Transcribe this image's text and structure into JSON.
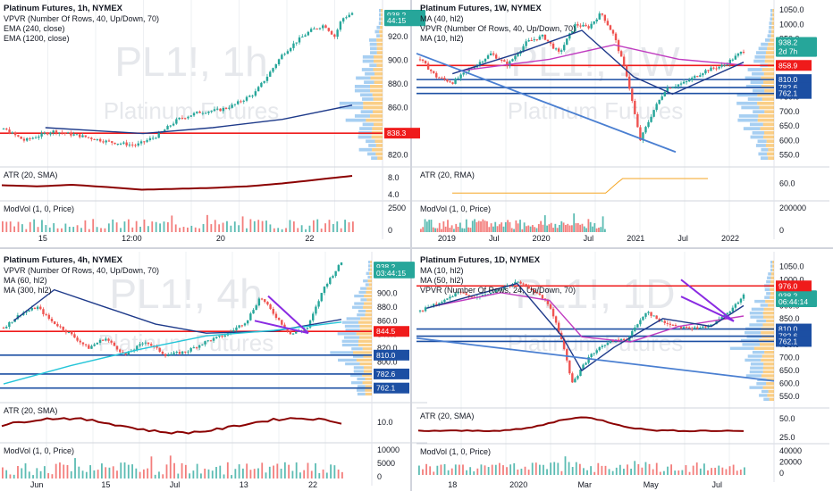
{
  "colors": {
    "up": "#26a69a",
    "down": "#ef5350",
    "red_line": "#ef1b1b",
    "blue_line": "#1c4fa3",
    "trend": "#4a7fd1",
    "purple": "#8a2be2",
    "vol_orange": "#f5a623",
    "vol_blue": "#5fa8e8",
    "atr": "#8b0000",
    "ma_blue": "#1e3a8a",
    "ma_pink": "#c03cc0",
    "ma_cyan": "#24c5d8",
    "grid": "#eef0f3",
    "watermark": "#e6e8ec"
  },
  "chart_data": [
    {
      "id": "chart-1h",
      "type": "candlestick",
      "title": "Platinum Futures, 1h, NYMEX",
      "indicators": [
        "VPVR (Number Of Rows, 40, Up/Down, 70)",
        "EMA (240, close)",
        "EMA (1200, close)"
      ],
      "watermark_symbol": "PL1!, 1h",
      "watermark_name": "Platinum Futures",
      "ylim": [
        815,
        945
      ],
      "y_ticks": [
        "940.0",
        "920.0",
        "900.0",
        "880.0",
        "860.0",
        "840.0",
        "820.0"
      ],
      "x_ticks": [
        "15",
        "12:00",
        "20",
        "22"
      ],
      "price_path": [
        [
          0,
          842
        ],
        [
          0.06,
          832
        ],
        [
          0.14,
          840
        ],
        [
          0.22,
          836
        ],
        [
          0.3,
          831
        ],
        [
          0.38,
          828
        ],
        [
          0.44,
          836
        ],
        [
          0.5,
          850
        ],
        [
          0.56,
          856
        ],
        [
          0.62,
          858
        ],
        [
          0.66,
          862
        ],
        [
          0.72,
          872
        ],
        [
          0.76,
          888
        ],
        [
          0.8,
          905
        ],
        [
          0.84,
          916
        ],
        [
          0.88,
          925
        ],
        [
          0.92,
          930
        ],
        [
          0.95,
          920
        ],
        [
          0.97,
          935
        ],
        [
          1,
          940
        ]
      ],
      "ema": [
        {
          "name": "EMA (240, close)",
          "points": [
            [
              0.12,
              843
            ],
            [
              0.4,
              838
            ],
            [
              0.6,
              843
            ],
            [
              0.8,
              850
            ],
            [
              1,
              862
            ]
          ]
        }
      ],
      "hlines": [
        {
          "price": 838.3,
          "label": "838.3"
        }
      ],
      "price_tags": [
        {
          "price": 938.2,
          "label": "938.2"
        },
        {
          "price": 933.5,
          "label": "44:15"
        }
      ],
      "atr": {
        "label": "ATR (20, SMA)",
        "ylim": [
          1,
          10
        ],
        "y_ticks": [
          "8.0",
          "4.0"
        ],
        "points": [
          [
            0,
            5
          ],
          [
            0.1,
            4.5
          ],
          [
            0.2,
            5.2
          ],
          [
            0.3,
            4.2
          ],
          [
            0.4,
            3
          ],
          [
            0.5,
            3.4
          ],
          [
            0.6,
            3.8
          ],
          [
            0.7,
            4.5
          ],
          [
            0.8,
            5.8
          ],
          [
            0.9,
            7.5
          ],
          [
            1,
            9.2
          ]
        ]
      },
      "modvol": {
        "label": "ModVol (1, 0, Price)",
        "y_ticks": [
          "2500",
          "0"
        ]
      }
    },
    {
      "id": "chart-1w",
      "type": "candlestick",
      "title": "Platinum Futures, 1W, NYMEX",
      "indicators": [
        "MA (40, hl2)",
        "VPVR (Number Of Rows, 40, Up/Down, 70)",
        "MA (10, hl2)"
      ],
      "watermark_symbol": "PL1!, 1W",
      "watermark_name": "Platinum Futures",
      "ylim": [
        530,
        1060
      ],
      "y_ticks": [
        "1050.0",
        "1000.0",
        "950.0",
        "900.0",
        "850.0",
        "800.0",
        "750.0",
        "700.0",
        "650.0",
        "600.0",
        "550.0"
      ],
      "x_ticks": [
        "2019",
        "Jul",
        "2020",
        "Jul",
        "2021",
        "Jul",
        "2022"
      ],
      "price_path": [
        [
          0,
          880
        ],
        [
          0.05,
          820
        ],
        [
          0.1,
          800
        ],
        [
          0.16,
          850
        ],
        [
          0.22,
          900
        ],
        [
          0.27,
          860
        ],
        [
          0.33,
          940
        ],
        [
          0.38,
          960
        ],
        [
          0.43,
          900
        ],
        [
          0.48,
          1000
        ],
        [
          0.52,
          990
        ],
        [
          0.56,
          1040
        ],
        [
          0.6,
          960
        ],
        [
          0.64,
          820
        ],
        [
          0.68,
          600
        ],
        [
          0.72,
          700
        ],
        [
          0.76,
          780
        ],
        [
          0.82,
          800
        ],
        [
          0.88,
          840
        ],
        [
          0.94,
          860
        ],
        [
          1,
          910
        ]
      ],
      "ma": [
        {
          "name": "MA (40, hl2)",
          "color": "#c03cc0",
          "points": [
            [
              0.12,
              840
            ],
            [
              0.4,
              880
            ],
            [
              0.6,
              930
            ],
            [
              0.8,
              880
            ],
            [
              1,
              860
            ]
          ]
        },
        {
          "name": "MA (10, hl2)",
          "color": "#1e3a8a",
          "points": [
            [
              0.1,
              830
            ],
            [
              0.3,
              900
            ],
            [
              0.5,
              980
            ],
            [
              0.66,
              820
            ],
            [
              0.78,
              760
            ],
            [
              1,
              870
            ]
          ]
        }
      ],
      "hlines": [
        {
          "price": 858.9,
          "label": "858.9",
          "color": "#ef1b1b"
        },
        {
          "price": 810.0,
          "label": "810.0",
          "color": "#1c4fa3"
        },
        {
          "price": 782.6,
          "label": "782.6",
          "color": "#1c4fa3"
        },
        {
          "price": 762.1,
          "label": "762.1",
          "color": "#1c4fa3"
        }
      ],
      "price_tags": [
        {
          "price": 938.2,
          "label": "938.2"
        },
        {
          "price": 907,
          "label": "2d 7h"
        }
      ],
      "atr": {
        "label": "ATR (20, RMA)",
        "y_ticks": [
          "60.0"
        ]
      },
      "modvol": {
        "label": "ModVol (1, 0, Price)",
        "y_ticks": [
          "200000",
          "0"
        ]
      }
    },
    {
      "id": "chart-4h",
      "type": "candlestick",
      "title": "Platinum Futures, 4h, NYMEX",
      "indicators": [
        "VPVR (Number Of Rows, 40, Up/Down, 70)",
        "MA (60, hl2)",
        "MA (300, hl2)"
      ],
      "watermark_symbol": "PL1!, 4h",
      "watermark_name": "Platinum Futures",
      "ylim": [
        750,
        950
      ],
      "y_ticks": [
        "900.0",
        "880.0",
        "860.0",
        "840.0",
        "820.0",
        "800.0"
      ],
      "x_ticks": [
        "Jun",
        "15",
        "Jul",
        "13",
        "22"
      ],
      "price_path": [
        [
          0,
          850
        ],
        [
          0.05,
          870
        ],
        [
          0.1,
          880
        ],
        [
          0.14,
          860
        ],
        [
          0.2,
          840
        ],
        [
          0.25,
          820
        ],
        [
          0.3,
          835
        ],
        [
          0.36,
          810
        ],
        [
          0.42,
          830
        ],
        [
          0.48,
          810
        ],
        [
          0.54,
          815
        ],
        [
          0.6,
          830
        ],
        [
          0.66,
          840
        ],
        [
          0.72,
          860
        ],
        [
          0.76,
          895
        ],
        [
          0.8,
          870
        ],
        [
          0.85,
          840
        ],
        [
          0.9,
          850
        ],
        [
          0.95,
          910
        ],
        [
          1,
          945
        ]
      ],
      "ma": [
        {
          "name": "MA (60, hl2)",
          "color": "#1e3a8a",
          "points": [
            [
              0.03,
              860
            ],
            [
              0.15,
              905
            ],
            [
              0.3,
              880
            ],
            [
              0.45,
              855
            ],
            [
              0.6,
              842
            ],
            [
              0.8,
              845
            ],
            [
              1,
              862
            ]
          ]
        },
        {
          "name": "MA (300, hl2)",
          "color": "#24c5d8",
          "points": [
            [
              0,
              768
            ],
            [
              0.2,
              795
            ],
            [
              0.4,
              818
            ],
            [
              0.6,
              838
            ],
            [
              0.8,
              846
            ],
            [
              1,
              858
            ]
          ]
        }
      ],
      "hlines": [
        {
          "price": 844.5,
          "label": "844.5",
          "color": "#ef1b1b"
        },
        {
          "price": 810.0,
          "label": "810.0",
          "color": "#1c4fa3"
        },
        {
          "price": 782.6,
          "label": "782.6",
          "color": "#1c4fa3"
        },
        {
          "price": 762.1,
          "label": "762.1",
          "color": "#1c4fa3"
        }
      ],
      "price_tags": [
        {
          "price": 938.2,
          "label": "938.2"
        },
        {
          "price": 929.5,
          "label": "03:44:15"
        }
      ],
      "atr": {
        "label": "ATR (20, SMA)",
        "y_ticks": [
          "10.0"
        ]
      },
      "modvol": {
        "label": "ModVol (1, 0, Price)",
        "y_ticks": [
          "10000",
          "5000",
          "0"
        ]
      }
    },
    {
      "id": "chart-1d",
      "type": "candlestick",
      "title": "Platinum Futures, 1D, NYMEX",
      "indicators": [
        "MA (10, hl2)",
        "MA (50, hl2)",
        "VPVR (Number Of Rows, 24, Up/Down, 70)"
      ],
      "watermark_symbol": "PL1!, 1D",
      "watermark_name": "Platinum Futures",
      "ylim": [
        530,
        1080
      ],
      "y_ticks": [
        "1050.0",
        "1000.0",
        "950.0",
        "900.0",
        "850.0",
        "800.0",
        "750.0",
        "700.0",
        "650.0",
        "600.0",
        "550.0"
      ],
      "x_ticks": [
        "18",
        "2020",
        "Mar",
        "May",
        "Jul"
      ],
      "price_path": [
        [
          0,
          880
        ],
        [
          0.06,
          910
        ],
        [
          0.12,
          950
        ],
        [
          0.18,
          930
        ],
        [
          0.24,
          960
        ],
        [
          0.3,
          990
        ],
        [
          0.35,
          960
        ],
        [
          0.4,
          900
        ],
        [
          0.44,
          760
        ],
        [
          0.47,
          600
        ],
        [
          0.52,
          700
        ],
        [
          0.58,
          760
        ],
        [
          0.64,
          770
        ],
        [
          0.7,
          880
        ],
        [
          0.74,
          840
        ],
        [
          0.8,
          820
        ],
        [
          0.86,
          810
        ],
        [
          0.92,
          840
        ],
        [
          0.96,
          880
        ],
        [
          1,
          938
        ]
      ],
      "ma": [
        {
          "name": "MA (50, hl2)",
          "color": "#c03cc0",
          "points": [
            [
              0.05,
              900
            ],
            [
              0.25,
              950
            ],
            [
              0.4,
              920
            ],
            [
              0.5,
              780
            ],
            [
              0.65,
              760
            ],
            [
              0.8,
              820
            ],
            [
              1,
              860
            ]
          ]
        },
        {
          "name": "MA (10, hl2)",
          "color": "#1e3a8a",
          "points": [
            [
              0.02,
              890
            ],
            [
              0.3,
              985
            ],
            [
              0.44,
              780
            ],
            [
              0.5,
              650
            ],
            [
              0.6,
              740
            ],
            [
              0.75,
              850
            ],
            [
              0.9,
              820
            ],
            [
              1,
              900
            ]
          ]
        }
      ],
      "hlines": [
        {
          "price": 976.0,
          "label": "976.0",
          "color": "#ef1b1b"
        },
        {
          "price": 810.0,
          "label": "810.0",
          "color": "#1c4fa3"
        },
        {
          "price": 782.6,
          "label": "782.6",
          "color": "#1c4fa3"
        },
        {
          "price": 762.1,
          "label": "762.1",
          "color": "#1c4fa3"
        }
      ],
      "price_tags": [
        {
          "price": 938.2,
          "label": "938.2"
        },
        {
          "price": 915,
          "label": "06:44:14"
        }
      ],
      "atr": {
        "label": "ATR (20, SMA)",
        "y_ticks": [
          "50.0",
          "25.0"
        ]
      },
      "modvol": {
        "label": "ModVol (1, 0, Price)",
        "y_ticks": [
          "40000",
          "20000",
          "0"
        ]
      }
    }
  ]
}
